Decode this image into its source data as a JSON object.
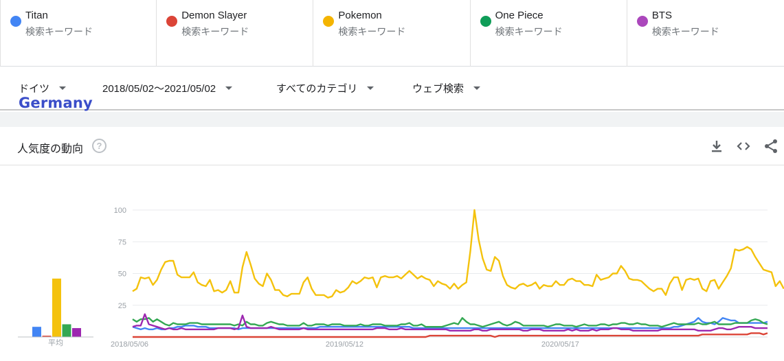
{
  "terms": [
    {
      "name": "Titan",
      "sub": "検索キーワード",
      "color": "#4285f4"
    },
    {
      "name": "Demon Slayer",
      "sub": "検索キーワード",
      "color": "#db4437"
    },
    {
      "name": "Pokemon",
      "sub": "検索キーワード",
      "color": "#f4b400"
    },
    {
      "name": "One Piece",
      "sub": "検索キーワード",
      "color": "#0f9d58"
    },
    {
      "name": "BTS",
      "sub": "検索キーワード",
      "color": "#ab47bc"
    }
  ],
  "filters": {
    "region": "ドイツ",
    "date_range": "2018/05/02〜2021/05/02",
    "category": "すべてのカテゴリ",
    "search_type": "ウェブ検索"
  },
  "annotation": "Germany",
  "card": {
    "title": "人気度の動向",
    "help_icon": "help-icon",
    "download_icon": "download-icon",
    "embed_icon": "embed-code-icon",
    "share_icon": "share-icon"
  },
  "chart_data": {
    "type": "line",
    "title": "",
    "xlabel": "",
    "ylabel": "",
    "ylim": [
      0,
      100
    ],
    "yticks": [
      "100",
      "75",
      "50",
      "25"
    ],
    "x_tick_labels": [
      "2018/05/06",
      "2019/05/12",
      "2020/05/17"
    ],
    "x_tick_index": [
      0,
      53,
      106
    ],
    "num_weeks": 157,
    "grid": true,
    "legend": "top",
    "averages": {
      "label": "平均",
      "values": [
        {
          "name": "Titan",
          "value": 8
        },
        {
          "name": "Demon Slayer",
          "value": 1
        },
        {
          "name": "Pokemon",
          "value": 46
        },
        {
          "name": "One Piece",
          "value": 10
        },
        {
          "name": "BTS",
          "value": 7
        }
      ]
    },
    "series": [
      {
        "name": "Titan",
        "color": "#4285f4",
        "values": [
          8,
          7,
          6,
          7,
          6,
          6,
          7,
          6,
          6,
          7,
          7,
          8,
          8,
          9,
          9,
          9,
          8,
          8,
          8,
          7,
          7,
          7,
          7,
          7,
          7,
          7,
          6,
          7,
          7,
          7,
          7,
          7,
          7,
          7,
          7,
          7,
          7,
          7,
          7,
          7,
          7,
          7,
          7,
          7,
          7,
          7,
          8,
          8,
          8,
          8,
          8,
          8,
          8,
          8,
          8,
          8,
          8,
          8,
          8,
          8,
          8,
          8,
          8,
          8,
          8,
          8,
          8,
          8,
          8,
          7,
          7,
          7,
          7,
          7,
          7,
          7,
          7,
          7,
          7,
          7,
          7,
          7,
          7,
          7,
          7,
          7,
          7,
          7,
          7,
          7,
          7,
          7,
          7,
          7,
          7,
          7,
          7,
          7,
          7,
          7,
          7,
          7,
          7,
          7,
          7,
          7,
          7,
          7,
          7,
          7,
          7,
          7,
          7,
          7,
          7,
          7,
          7,
          7,
          7,
          7,
          7,
          7,
          7,
          7,
          7,
          7,
          7,
          7,
          7,
          7,
          7,
          7,
          7,
          8,
          8,
          9,
          10,
          11,
          12,
          15,
          12,
          11,
          11,
          10,
          12,
          15,
          14,
          13,
          13,
          11,
          11,
          11,
          11,
          11,
          11,
          11,
          12
        ]
      },
      {
        "name": "Demon Slayer",
        "color": "#db4437",
        "values": [
          0,
          0,
          0,
          0,
          0,
          0,
          0,
          0,
          0,
          0,
          0,
          0,
          0,
          0,
          0,
          0,
          0,
          0,
          0,
          0,
          0,
          0,
          0,
          0,
          0,
          0,
          0,
          0,
          0,
          0,
          0,
          0,
          0,
          0,
          0,
          0,
          0,
          0,
          0,
          0,
          0,
          0,
          0,
          0,
          0,
          0,
          0,
          0,
          0,
          0,
          0,
          0,
          0,
          0,
          0,
          0,
          0,
          0,
          0,
          0,
          0,
          0,
          0,
          0,
          0,
          0,
          0,
          0,
          0,
          0,
          0,
          0,
          0,
          1,
          1,
          1,
          1,
          1,
          1,
          1,
          1,
          1,
          1,
          1,
          1,
          1,
          1,
          1,
          1,
          0,
          1,
          1,
          1,
          1,
          1,
          1,
          1,
          1,
          1,
          1,
          1,
          1,
          1,
          1,
          1,
          1,
          1,
          1,
          1,
          1,
          1,
          1,
          1,
          1,
          1,
          1,
          1,
          1,
          1,
          1,
          1,
          1,
          1,
          1,
          1,
          1,
          1,
          1,
          1,
          1,
          1,
          1,
          1,
          1,
          1,
          1,
          1,
          1,
          1,
          1,
          2,
          2,
          2,
          2,
          2,
          2,
          2,
          2,
          2,
          2,
          2,
          2,
          3,
          3,
          3,
          2,
          3
        ]
      },
      {
        "name": "Pokemon",
        "color": "#f4c20d",
        "values": [
          36,
          38,
          47,
          46,
          47,
          41,
          45,
          53,
          59,
          60,
          60,
          49,
          47,
          47,
          47,
          51,
          43,
          41,
          40,
          45,
          36,
          37,
          35,
          37,
          44,
          35,
          35,
          55,
          67,
          57,
          46,
          42,
          40,
          50,
          45,
          37,
          37,
          33,
          32,
          34,
          34,
          34,
          43,
          47,
          38,
          33,
          33,
          33,
          31,
          32,
          37,
          35,
          36,
          39,
          44,
          42,
          44,
          47,
          46,
          47,
          39,
          47,
          48,
          47,
          47,
          48,
          46,
          49,
          52,
          49,
          46,
          48,
          46,
          45,
          40,
          44,
          42,
          41,
          38,
          42,
          38,
          41,
          43,
          68,
          100,
          77,
          62,
          53,
          52,
          63,
          60,
          48,
          41,
          39,
          38,
          41,
          42,
          40,
          41,
          43,
          38,
          41,
          40,
          40,
          44,
          41,
          41,
          45,
          46,
          44,
          44,
          41,
          41,
          40,
          49,
          45,
          46,
          47,
          50,
          50,
          56,
          52,
          46,
          45,
          45,
          44,
          41,
          38,
          36,
          38,
          38,
          33,
          42,
          47,
          47,
          37,
          45,
          46,
          45,
          46,
          38,
          36,
          44,
          45,
          38,
          43,
          48,
          54,
          69,
          68,
          69,
          71,
          69,
          63,
          58,
          53,
          52,
          51,
          40,
          44,
          38
        ]
      },
      {
        "name": "One Piece",
        "color": "#34a853",
        "values": [
          14,
          12,
          14,
          14,
          15,
          12,
          14,
          12,
          10,
          9,
          11,
          10,
          10,
          10,
          11,
          11,
          11,
          10,
          10,
          10,
          10,
          10,
          10,
          10,
          10,
          9,
          10,
          9,
          12,
          10,
          10,
          9,
          9,
          11,
          12,
          11,
          10,
          10,
          9,
          9,
          9,
          9,
          11,
          9,
          9,
          10,
          10,
          10,
          9,
          10,
          10,
          10,
          9,
          9,
          9,
          9,
          10,
          9,
          9,
          10,
          10,
          10,
          9,
          9,
          9,
          9,
          10,
          10,
          11,
          9,
          9,
          10,
          8,
          8,
          8,
          8,
          8,
          9,
          10,
          11,
          10,
          15,
          12,
          10,
          10,
          9,
          8,
          9,
          10,
          11,
          12,
          10,
          9,
          10,
          12,
          11,
          9,
          9,
          9,
          9,
          9,
          9,
          8,
          9,
          10,
          10,
          9,
          9,
          9,
          8,
          9,
          10,
          9,
          9,
          9,
          10,
          10,
          9,
          10,
          10,
          11,
          11,
          10,
          10,
          11,
          10,
          10,
          9,
          9,
          9,
          8,
          9,
          10,
          11,
          10,
          10,
          10,
          10,
          10,
          11,
          10,
          10,
          11,
          12,
          10,
          10,
          10,
          10,
          11,
          11,
          11,
          11,
          13,
          14,
          13,
          11,
          10
        ]
      },
      {
        "name": "BTS",
        "color": "#9c27b0",
        "values": [
          8,
          9,
          9,
          18,
          10,
          9,
          8,
          7,
          6,
          7,
          6,
          6,
          7,
          6,
          6,
          6,
          6,
          6,
          6,
          6,
          6,
          7,
          7,
          7,
          7,
          6,
          7,
          17,
          8,
          7,
          7,
          7,
          7,
          7,
          8,
          7,
          6,
          6,
          6,
          6,
          6,
          6,
          7,
          6,
          6,
          6,
          6,
          6,
          6,
          6,
          6,
          6,
          6,
          6,
          6,
          6,
          6,
          6,
          6,
          6,
          7,
          7,
          7,
          6,
          6,
          6,
          7,
          6,
          6,
          6,
          6,
          6,
          6,
          6,
          6,
          6,
          6,
          6,
          5,
          5,
          5,
          5,
          5,
          5,
          6,
          6,
          5,
          5,
          6,
          6,
          6,
          6,
          6,
          6,
          6,
          6,
          5,
          5,
          6,
          6,
          6,
          5,
          5,
          5,
          5,
          5,
          5,
          6,
          5,
          6,
          5,
          5,
          5,
          6,
          5,
          6,
          6,
          6,
          7,
          7,
          6,
          6,
          6,
          5,
          5,
          5,
          5,
          5,
          5,
          5,
          6,
          6,
          6,
          6,
          6,
          6,
          6,
          6,
          6,
          5,
          5,
          5,
          5,
          6,
          7,
          7,
          6,
          6,
          7,
          8,
          8,
          8,
          8,
          7,
          7,
          7,
          7
        ]
      }
    ]
  }
}
